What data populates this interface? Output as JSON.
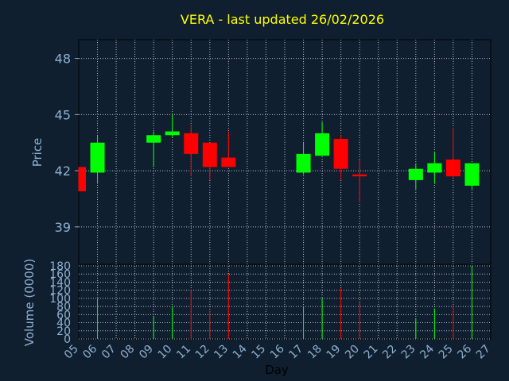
{
  "colors": {
    "background": "#0f1f30",
    "title": "#ffff00",
    "axis_text": "#8fb0d0",
    "day_text": "#000000",
    "up": "#00ff00",
    "down": "#ff0000",
    "grid": "#ffffff"
  },
  "chart_data": {
    "type": "candlestick",
    "title": "VERA - last updated 26/02/2026",
    "xlabel": "Day",
    "ylabel": "Price",
    "volume_ylabel": "Volume (0000)",
    "x_ticks": [
      "05",
      "06",
      "07",
      "08",
      "09",
      "10",
      "11",
      "12",
      "13",
      "14",
      "15",
      "16",
      "17",
      "18",
      "19",
      "20",
      "21",
      "22",
      "23",
      "24",
      "25",
      "26",
      "27"
    ],
    "price_ylim": [
      37.0,
      49.0
    ],
    "price_ticks": [
      39,
      42,
      45,
      48
    ],
    "volume_ylim": [
      0,
      180
    ],
    "volume_ticks": [
      0,
      20,
      40,
      60,
      80,
      100,
      120,
      140,
      160,
      180
    ],
    "grid": true,
    "candles": [
      {
        "day": "05",
        "open": 42.2,
        "close": 40.9,
        "high": 42.2,
        "low": 40.9,
        "volume": 0
      },
      {
        "day": "06",
        "open": 41.9,
        "close": 43.5,
        "high": 43.9,
        "low": 41.3,
        "volume": 100
      },
      {
        "day": "09",
        "open": 43.5,
        "close": 43.9,
        "high": 44.1,
        "low": 42.2,
        "volume": 55
      },
      {
        "day": "10",
        "open": 43.9,
        "close": 44.1,
        "high": 45.0,
        "low": 43.8,
        "volume": 80
      },
      {
        "day": "11",
        "open": 44.0,
        "close": 42.9,
        "high": 44.4,
        "low": 41.7,
        "volume": 120
      },
      {
        "day": "12",
        "open": 43.5,
        "close": 42.2,
        "high": 43.5,
        "low": 41.5,
        "volume": 70
      },
      {
        "day": "13",
        "open": 42.7,
        "close": 42.2,
        "high": 44.1,
        "low": 42.2,
        "volume": 160
      },
      {
        "day": "17",
        "open": 41.9,
        "close": 42.9,
        "high": 43.5,
        "low": 41.8,
        "volume": 80
      },
      {
        "day": "18",
        "open": 42.8,
        "close": 44.0,
        "high": 44.6,
        "low": 42.8,
        "volume": 100
      },
      {
        "day": "19",
        "open": 43.7,
        "close": 42.1,
        "high": 43.9,
        "low": 41.5,
        "volume": 125
      },
      {
        "day": "20",
        "open": 41.8,
        "close": 41.7,
        "high": 42.6,
        "low": 40.3,
        "volume": 90
      },
      {
        "day": "23",
        "open": 41.5,
        "close": 42.1,
        "high": 42.4,
        "low": 41.0,
        "volume": 50
      },
      {
        "day": "24",
        "open": 41.9,
        "close": 42.4,
        "high": 43.0,
        "low": 41.3,
        "volume": 75
      },
      {
        "day": "25",
        "open": 42.6,
        "close": 41.7,
        "high": 44.3,
        "low": 41.6,
        "volume": 80
      },
      {
        "day": "26",
        "open": 41.2,
        "close": 42.4,
        "high": 42.4,
        "low": 41.0,
        "volume": 180
      }
    ]
  }
}
